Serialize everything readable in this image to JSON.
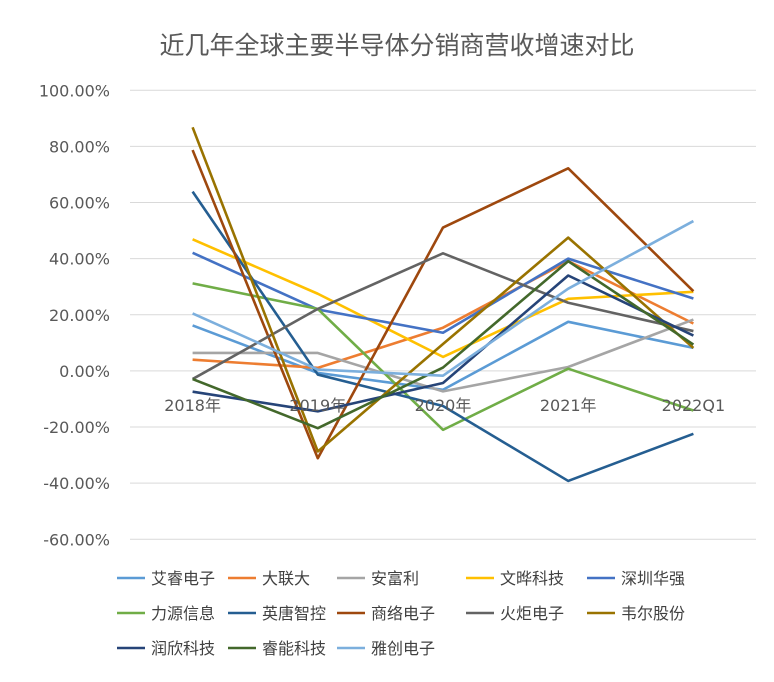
{
  "chart_data": {
    "type": "line",
    "title": "近几年全球主要半导体分销商营收增速对比",
    "categories": [
      "2018年",
      "2019年",
      "2020年",
      "2021年",
      "2022Q1"
    ],
    "ylim": [
      -0.6,
      1.0
    ],
    "yticks": [
      1.0,
      0.8,
      0.6,
      0.4,
      0.2,
      0.0,
      -0.2,
      -0.4,
      -0.6
    ],
    "ytick_labels": [
      "100.00%",
      "80.00%",
      "60.00%",
      "40.00%",
      "20.00%",
      "0.00%",
      "-20.00%",
      "-40.00%",
      "-60.00%"
    ],
    "grid": true,
    "legend_position": "bottom",
    "series": [
      {
        "name": "艾睿电子",
        "color": "#5B9BD5",
        "values": [
          0.162,
          -0.007,
          -0.067,
          0.175,
          0.082
        ]
      },
      {
        "name": "大联大",
        "color": "#ED7D31",
        "values": [
          0.04,
          0.011,
          0.154,
          0.391,
          0.169
        ]
      },
      {
        "name": "安富利",
        "color": "#A5A5A5",
        "values": [
          0.064,
          0.064,
          -0.073,
          0.014,
          0.183
        ]
      },
      {
        "name": "文晔科技",
        "color": "#FFC000",
        "values": [
          0.469,
          0.275,
          0.05,
          0.257,
          0.282
        ]
      },
      {
        "name": "深圳华强",
        "color": "#4472C4",
        "values": [
          0.421,
          0.219,
          0.136,
          0.4,
          0.258
        ]
      },
      {
        "name": "力源信息",
        "color": "#70AD47",
        "values": [
          0.312,
          0.221,
          -0.21,
          0.008,
          -0.141
        ]
      },
      {
        "name": "英唐智控",
        "color": "#255E91",
        "values": [
          0.639,
          -0.013,
          -0.125,
          -0.392,
          -0.224
        ]
      },
      {
        "name": "商络电子",
        "color": "#9E480E",
        "values": [
          0.787,
          -0.311,
          0.511,
          0.722,
          0.284
        ]
      },
      {
        "name": "火炬电子",
        "color": "#636363",
        "values": [
          -0.029,
          0.221,
          0.419,
          0.243,
          0.142
        ]
      },
      {
        "name": "韦尔股份",
        "color": "#997300",
        "values": [
          0.868,
          -0.287,
          0.096,
          0.475,
          0.082
        ]
      },
      {
        "name": "润欣科技",
        "color": "#264478",
        "values": [
          -0.074,
          -0.144,
          -0.043,
          0.34,
          0.126
        ]
      },
      {
        "name": "睿能科技",
        "color": "#43682B",
        "values": [
          -0.029,
          -0.204,
          0.012,
          0.391,
          0.094
        ]
      },
      {
        "name": "雅创电子",
        "color": "#7CAFDD",
        "values": [
          0.205,
          0.005,
          -0.017,
          0.293,
          0.534
        ]
      }
    ]
  }
}
